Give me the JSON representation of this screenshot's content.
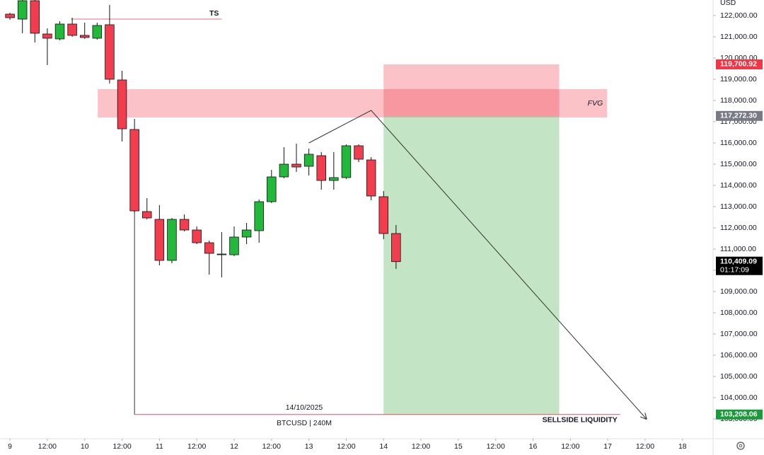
{
  "chart_data": {
    "type": "candlestick",
    "axis_unit": "USD",
    "x": [
      0,
      1,
      2,
      3,
      4,
      5,
      6,
      7,
      8,
      9,
      10,
      11,
      12,
      13,
      14,
      15,
      16,
      17,
      18,
      19,
      20,
      21,
      22,
      23,
      24,
      25,
      26,
      27,
      28,
      29,
      30,
      31
    ],
    "open": [
      122067,
      121833,
      122700,
      121133,
      120900,
      121600,
      121067,
      120933,
      121567,
      118967,
      116633,
      112767,
      112400,
      110467,
      112400,
      111900,
      111300,
      110733,
      110733,
      111567,
      111867,
      113233,
      114400,
      115000,
      114900,
      115400,
      114233,
      114367,
      115867,
      115200,
      113467,
      111733
    ],
    "high": [
      122133,
      122733,
      122733,
      121400,
      121733,
      121900,
      121667,
      121667,
      122500,
      119400,
      117133,
      113400,
      113067,
      112467,
      112633,
      112067,
      111400,
      111800,
      112067,
      112233,
      113333,
      114733,
      115800,
      115967,
      115733,
      115567,
      115567,
      115933,
      115933,
      115333,
      113733,
      112133
    ],
    "low": [
      121800,
      121167,
      120733,
      119667,
      120833,
      121000,
      120900,
      120867,
      118800,
      116067,
      112733,
      112400,
      110233,
      110333,
      111833,
      111233,
      109800,
      109667,
      110667,
      111233,
      111300,
      113167,
      114333,
      114633,
      114467,
      113800,
      113800,
      114300,
      115100,
      113300,
      111467,
      110067
    ],
    "close": [
      121900,
      122700,
      121167,
      120933,
      121600,
      121067,
      120967,
      121533,
      119000,
      116667,
      112800,
      112467,
      110467,
      112400,
      111900,
      111300,
      110800,
      110767,
      111567,
      111900,
      113233,
      114400,
      115000,
      114867,
      115467,
      114233,
      114367,
      115867,
      115233,
      113500,
      111733,
      110409.09
    ],
    "up_color": "#22b83a",
    "down_color": "#f23d4f",
    "xlim": [
      -0.8,
      56
    ],
    "ylim": [
      102067,
      122733
    ],
    "xticks": [
      {
        "value": 0,
        "label": "9"
      },
      {
        "value": 3,
        "label": "12:00"
      },
      {
        "value": 6,
        "label": "10"
      },
      {
        "value": 9,
        "label": "12:00"
      },
      {
        "value": 12,
        "label": "11"
      },
      {
        "value": 15,
        "label": "12:00"
      },
      {
        "value": 18,
        "label": "12"
      },
      {
        "value": 21,
        "label": "12:00"
      },
      {
        "value": 24,
        "label": "13"
      },
      {
        "value": 27,
        "label": "12:00"
      },
      {
        "value": 30,
        "label": "14"
      },
      {
        "value": 33,
        "label": "12:00"
      },
      {
        "value": 36,
        "label": "15"
      },
      {
        "value": 39,
        "label": "12:00"
      },
      {
        "value": 42,
        "label": "16"
      },
      {
        "value": 45,
        "label": "12:00"
      },
      {
        "value": 48,
        "label": "17"
      },
      {
        "value": 51,
        "label": "12:00"
      },
      {
        "value": 54,
        "label": "18"
      }
    ],
    "yticks": [
      {
        "value": 103000,
        "label": "103,000.00"
      },
      {
        "value": 104000,
        "label": "104,000.00"
      },
      {
        "value": 105000,
        "label": "105,000.00"
      },
      {
        "value": 106000,
        "label": "106,000.00"
      },
      {
        "value": 107000,
        "label": "107,000.00"
      },
      {
        "value": 108000,
        "label": "108,000.00"
      },
      {
        "value": 109000,
        "label": "109,000.00"
      },
      {
        "value": 110000,
        "label": "110,000.00"
      },
      {
        "value": 111000,
        "label": "111,000.00"
      },
      {
        "value": 112000,
        "label": "112,000.00"
      },
      {
        "value": 113000,
        "label": "113,000.00"
      },
      {
        "value": 114000,
        "label": "114,000.00"
      },
      {
        "value": 115000,
        "label": "115,000.00"
      },
      {
        "value": 116000,
        "label": "116,000.00"
      },
      {
        "value": 117000,
        "label": "117,000.00"
      },
      {
        "value": 118000,
        "label": "118,000.00"
      },
      {
        "value": 119000,
        "label": "119,000.00"
      },
      {
        "value": 120000,
        "label": "120,000.00"
      },
      {
        "value": 121000,
        "label": "121,000.00"
      },
      {
        "value": 122000,
        "label": "122,000.00"
      }
    ],
    "zones": [
      {
        "name": "FVG",
        "x": [
          7.05,
          47.95
        ],
        "y": [
          117200,
          118533
        ],
        "color": "rgba(242,54,69,0.3)"
      },
      {
        "x": [
          30,
          44.1
        ],
        "y": [
          117272.3,
          119700.92
        ],
        "color": "rgba(242,54,69,0.3)"
      },
      {
        "x": [
          30,
          44.1
        ],
        "y": [
          103208.06,
          117272.3
        ],
        "color": "rgba(76,175,80,0.33)"
      }
    ],
    "lines": [
      {
        "name": "TS",
        "x": [
          4.9,
          17
        ],
        "y": [
          121833,
          121833
        ],
        "color": "#e0707a"
      },
      {
        "name": "SELLSIDE LIQUIDITY",
        "x": [
          10,
          49
        ],
        "y": [
          103208.06,
          103208.06
        ],
        "color": "#e05060"
      },
      {
        "x": [
          10,
          10
        ],
        "y": [
          116633,
          103208.06
        ],
        "color": "#333333"
      },
      {
        "x": [
          24,
          29,
          51.1
        ],
        "y": [
          116000,
          117533,
          103000
        ],
        "color": "#333333",
        "arrow": true
      }
    ],
    "date_label": "14/10/2025",
    "symbol_label": "BTCUSD | 240M",
    "price_tags": [
      {
        "value": 119700.92,
        "label": "119,700.92",
        "color": "#f23645"
      },
      {
        "value": 117272.3,
        "label": "117,272.30",
        "color": "#787b86"
      },
      {
        "value": 110409.09,
        "label": "110,409.09",
        "sub": "01:17:09",
        "color": "#000000"
      },
      {
        "value": 103208.06,
        "label": "103,208.06",
        "color": "#1a9b3a"
      }
    ]
  }
}
